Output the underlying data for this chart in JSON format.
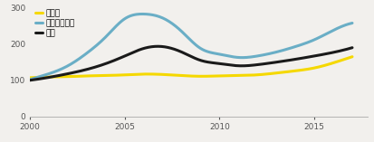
{
  "title": "",
  "xlabel": "",
  "ylabel": "",
  "ylim": [
    0,
    310
  ],
  "xlim": [
    2000,
    2017.8
  ],
  "yticks": [
    0,
    100,
    200,
    300
  ],
  "xticks": [
    2000,
    2005,
    2010,
    2015
  ],
  "legend_labels": [
    "ダラス",
    "ロサンゼルス",
    "米国"
  ],
  "colors": [
    "#f5d800",
    "#6aaec6",
    "#1a1a1a"
  ],
  "background_color": "#f2f0ed",
  "line_width": 2.2,
  "years": [
    2000,
    2001,
    2002,
    2003,
    2004,
    2005,
    2006,
    2007,
    2008,
    2009,
    2010,
    2011,
    2012,
    2013,
    2014,
    2015,
    2016,
    2017
  ],
  "dallas": [
    107,
    109,
    110,
    112,
    113,
    115,
    117,
    116,
    113,
    111,
    112,
    113,
    115,
    120,
    126,
    134,
    148,
    165
  ],
  "la": [
    102,
    118,
    140,
    175,
    220,
    270,
    283,
    272,
    235,
    188,
    172,
    163,
    167,
    178,
    193,
    212,
    238,
    258
  ],
  "us": [
    100,
    108,
    118,
    130,
    146,
    167,
    188,
    193,
    178,
    155,
    146,
    140,
    143,
    150,
    158,
    167,
    177,
    190
  ]
}
